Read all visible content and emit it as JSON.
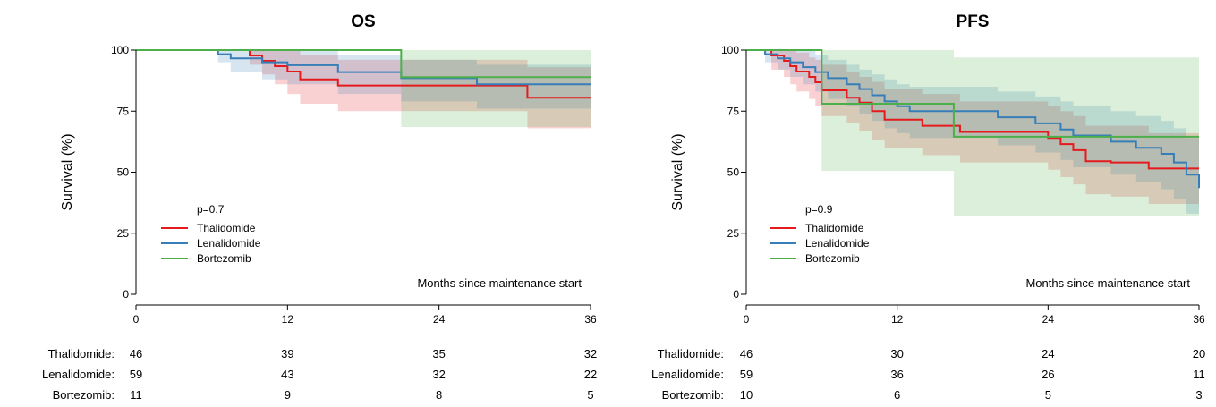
{
  "colors": {
    "thalidomide": "#e41a1c",
    "lenalidomide": "#377eb8",
    "bortezomib": "#4daf4a"
  },
  "chart_data": [
    {
      "type": "line",
      "title": "OS",
      "ylabel": "Survival (%)",
      "xlabel": "Months since maintenance start",
      "pvalue": "p=0.7",
      "xlim": [
        0,
        36
      ],
      "ylim": [
        0,
        100
      ],
      "xticks": [
        "0",
        "12",
        "24",
        "36"
      ],
      "yticks": [
        "0",
        "25",
        "50",
        "75",
        "100"
      ],
      "legend_position": "lower-left",
      "series": [
        {
          "name": "Thalidomide",
          "color_key": "thalidomide",
          "x": [
            0,
            9,
            10,
            11,
            12,
            13,
            16,
            22,
            31,
            36
          ],
          "y": [
            100,
            97.8,
            95.6,
            93.4,
            91.2,
            88,
            85.5,
            85.5,
            80.5,
            80.5
          ],
          "lower": [
            100,
            94,
            90,
            86,
            82,
            78,
            75,
            75,
            68,
            68
          ],
          "upper": [
            100,
            100,
            100,
            100,
            100,
            98,
            96,
            96,
            93,
            93
          ]
        },
        {
          "name": "Lenalidomide",
          "color_key": "lenalidomide",
          "x": [
            0,
            6.5,
            7.5,
            10,
            12,
            13,
            16,
            18,
            21,
            25,
            27,
            36
          ],
          "y": [
            100,
            98.3,
            96.6,
            95,
            93.8,
            93.8,
            91,
            91,
            88.5,
            88.5,
            86,
            86
          ],
          "lower": [
            100,
            95,
            91,
            88,
            86,
            86,
            82,
            82,
            79,
            79,
            76,
            76
          ],
          "upper": [
            100,
            100,
            100,
            100,
            100,
            100,
            98,
            98,
            96,
            96,
            94,
            94
          ]
        },
        {
          "name": "Bortezomib",
          "color_key": "bortezomib",
          "x": [
            0,
            21,
            36
          ],
          "y": [
            100,
            88.9,
            88.9
          ],
          "lower": [
            100,
            68.5,
            68.5
          ],
          "upper": [
            100,
            100,
            100
          ]
        }
      ],
      "risk_table": {
        "x": [
          0,
          12,
          24,
          36
        ],
        "rows": [
          {
            "label": "Thalidomide:",
            "values": [
              "46",
              "39",
              "35",
              "32"
            ]
          },
          {
            "label": "Lenalidomide:",
            "values": [
              "59",
              "43",
              "32",
              "22"
            ]
          },
          {
            "label": "Bortezomib:",
            "values": [
              "11",
              "9",
              "8",
              "5"
            ]
          }
        ]
      }
    },
    {
      "type": "line",
      "title": "PFS",
      "ylabel": "Survival (%)",
      "xlabel": "Months since maintenance start",
      "pvalue": "p=0.9",
      "xlim": [
        0,
        36
      ],
      "ylim": [
        0,
        100
      ],
      "xticks": [
        "0",
        "12",
        "24",
        "36"
      ],
      "yticks": [
        "0",
        "25",
        "50",
        "75",
        "100"
      ],
      "legend_position": "lower-left",
      "series": [
        {
          "name": "Thalidomide",
          "color_key": "thalidomide",
          "x": [
            0,
            2,
            3,
            3.5,
            4,
            5,
            5.5,
            6,
            8,
            9,
            10,
            11,
            14,
            17,
            24,
            25,
            26,
            27,
            29,
            32,
            36
          ],
          "y": [
            100,
            97.8,
            95.6,
            93.4,
            91.2,
            89,
            86.8,
            83.5,
            80.5,
            78.5,
            75,
            71.5,
            69,
            66.5,
            64,
            61.5,
            59,
            54.5,
            54,
            51.5,
            51.5
          ],
          "lower": [
            100,
            92,
            89,
            86,
            83,
            80,
            77,
            73,
            70,
            67,
            63,
            60,
            57,
            54,
            51,
            48,
            45,
            41,
            40,
            37,
            37
          ],
          "upper": [
            100,
            100,
            100,
            100,
            99,
            97,
            96,
            94,
            91,
            89,
            87,
            84,
            82,
            79,
            77,
            75,
            73,
            69,
            69,
            66,
            66
          ]
        },
        {
          "name": "Lenalidomide",
          "color_key": "lenalidomide",
          "x": [
            0,
            1.5,
            2.5,
            3.5,
            4.5,
            5.5,
            6.5,
            8,
            9,
            10,
            11,
            12,
            13,
            14,
            18,
            20,
            23,
            25,
            26,
            29,
            31,
            33,
            34,
            35,
            36
          ],
          "y": [
            100,
            98.3,
            96.6,
            95,
            93,
            91,
            88.5,
            86,
            84,
            81.5,
            79,
            77,
            75,
            75,
            75,
            72.5,
            70,
            67.5,
            65,
            62.5,
            60,
            57.5,
            54,
            49,
            43.5
          ],
          "lower": [
            100,
            95,
            92,
            89,
            86,
            83,
            80,
            77,
            74,
            71,
            68,
            66,
            64,
            64,
            64,
            61,
            58,
            55,
            52,
            49,
            46,
            43,
            39,
            33,
            26
          ],
          "upper": [
            100,
            100,
            100,
            100,
            100,
            98,
            96,
            94,
            92,
            90,
            88,
            86,
            85,
            85,
            85,
            83,
            81,
            79,
            77,
            75,
            73,
            71,
            68,
            64,
            59
          ]
        },
        {
          "name": "Bortezomib",
          "color_key": "bortezomib",
          "x": [
            0,
            6,
            16.5,
            36
          ],
          "y": [
            100,
            78,
            64.5,
            64.5
          ],
          "lower": [
            100,
            50.5,
            32,
            32
          ],
          "upper": [
            100,
            100,
            97,
            97
          ]
        }
      ],
      "risk_table": {
        "x": [
          0,
          12,
          24,
          36
        ],
        "rows": [
          {
            "label": "Thalidomide:",
            "values": [
              "46",
              "30",
              "24",
              "20"
            ]
          },
          {
            "label": "Lenalidomide:",
            "values": [
              "59",
              "36",
              "26",
              "11"
            ]
          },
          {
            "label": "Bortezomib:",
            "values": [
              "10",
              "6",
              "5",
              "3"
            ]
          }
        ]
      }
    }
  ]
}
